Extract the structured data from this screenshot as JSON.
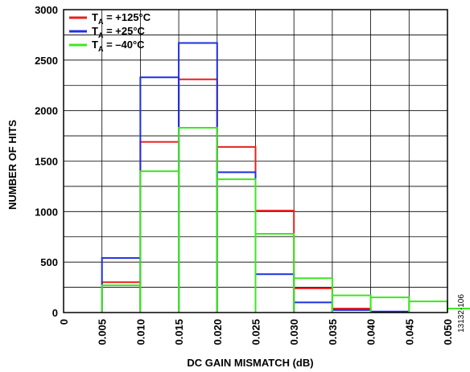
{
  "chart_data": {
    "type": "bar",
    "categories": [
      "0.005",
      "0.010",
      "0.015",
      "0.020",
      "0.025",
      "0.030",
      "0.035",
      "0.040",
      "0.045",
      "0.050"
    ],
    "x_ticks": [
      "0",
      "0.005",
      "0.010",
      "0.015",
      "0.020",
      "0.025",
      "0.030",
      "0.035",
      "0.040",
      "0.045",
      "0.050"
    ],
    "y_ticks": [
      "0",
      "500",
      "1000",
      "1500",
      "2000",
      "2500",
      "3000"
    ],
    "series": [
      {
        "name": "T",
        "subscript": "A",
        "suffix": " = +125°C",
        "color": "#e8201f",
        "values": [
          300,
          1690,
          2310,
          1640,
          1010,
          240,
          40,
          0,
          0,
          0
        ]
      },
      {
        "name": "T",
        "subscript": "A",
        "suffix": " = +25°C",
        "color": "#1f2fe0",
        "values": [
          540,
          2330,
          2670,
          1390,
          380,
          100,
          25,
          10,
          0,
          0
        ]
      },
      {
        "name": "T",
        "subscript": "A",
        "suffix": " = –40°C",
        "color": "#3ce81f",
        "values": [
          270,
          1400,
          1830,
          1320,
          780,
          340,
          170,
          150,
          110,
          40
        ]
      }
    ],
    "xlabel": "DC GAIN MISMATCH (dB)",
    "ylabel": "NUMBER OF HITS",
    "ylim": [
      0,
      3000
    ],
    "grid": true,
    "legend_position": "top-left"
  },
  "figure_code": "13132-106"
}
